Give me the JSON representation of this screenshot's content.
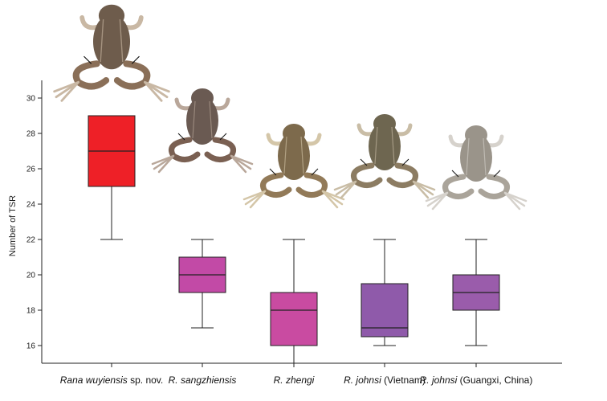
{
  "chart_data": {
    "type": "box",
    "ylabel": "Number of TSR",
    "ylim": [
      15,
      31
    ],
    "yticks": [
      16,
      18,
      20,
      22,
      24,
      26,
      28,
      30
    ],
    "grid": false,
    "categories": [
      {
        "italic": "Rana wuyiensis",
        "rest": " sp. nov."
      },
      {
        "italic": "R. sangzhiensis",
        "rest": ""
      },
      {
        "italic": "R. zhengi",
        "rest": ""
      },
      {
        "italic": "R. johnsi",
        "rest": " (Vietnam)"
      },
      {
        "italic": "R. johnsi",
        "rest": " (Guangxi, China)"
      }
    ],
    "series": [
      {
        "min": 22,
        "q1": 25,
        "median": 27,
        "q3": 29,
        "max": 29,
        "color": "#ee2027"
      },
      {
        "min": 17,
        "q1": 19,
        "median": 20,
        "q3": 21,
        "max": 22,
        "color": "#c24aa6"
      },
      {
        "min": 15,
        "q1": 16,
        "median": 18,
        "q3": 19,
        "max": 22,
        "color": "#c94ba1"
      },
      {
        "min": 16,
        "q1": 16.5,
        "median": 17,
        "q3": 19.5,
        "max": 22,
        "color": "#8f5aaa"
      },
      {
        "min": 16,
        "q1": 18,
        "median": 19,
        "q3": 20,
        "max": 22,
        "color": "#9a5cab"
      }
    ],
    "frog_images": [
      "frog-photo",
      "frog-photo",
      "frog-photo",
      "frog-photo",
      "frog-photo"
    ]
  }
}
